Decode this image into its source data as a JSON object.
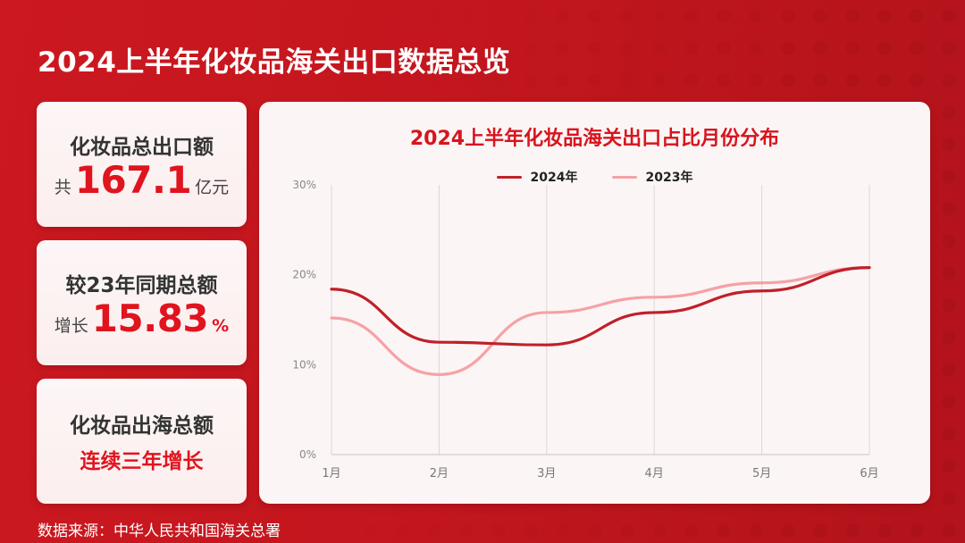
{
  "page": {
    "title": "2024上半年化妆品海关出口数据总览",
    "footer": "数据来源：中华人民共和国海关总署"
  },
  "cards": [
    {
      "label": "化妆品总出口额",
      "prefix": "共",
      "value": "167.1",
      "suffix": "亿元"
    },
    {
      "label": "较23年同期总额",
      "prefix": "增长",
      "value": "15.83",
      "suffix": "%"
    },
    {
      "label": "化妆品出海总额",
      "highlight": "连续三年增长"
    }
  ],
  "colors": {
    "background": "#c3161e",
    "accent": "#e0141e",
    "series_2024": "#c0202a",
    "series_2023": "#f4a2a6",
    "card_bg": "#fdf6f6"
  },
  "chart": {
    "title": "2024上半年化妆品海关出口占比月份分布",
    "legend": [
      {
        "label": "2024年",
        "color": "#c0202a"
      },
      {
        "label": "2023年",
        "color": "#f4a2a6"
      }
    ],
    "y_ticks": [
      "0%",
      "10%",
      "20%",
      "30%"
    ],
    "x_ticks": [
      "1月",
      "2月",
      "3月",
      "4月",
      "5月",
      "6月"
    ]
  },
  "chart_data": {
    "type": "line",
    "title": "2024上半年化妆品海关出口占比月份分布",
    "xlabel": "",
    "ylabel": "",
    "categories": [
      "1月",
      "2月",
      "3月",
      "4月",
      "5月",
      "6月"
    ],
    "series": [
      {
        "name": "2024年",
        "values": [
          18.4,
          12.5,
          12.2,
          15.8,
          18.2,
          20.8
        ]
      },
      {
        "name": "2023年",
        "values": [
          15.2,
          8.9,
          15.8,
          17.5,
          19.1,
          20.8
        ]
      }
    ],
    "ylim": [
      0,
      30
    ],
    "y_ticks": [
      0,
      10,
      20,
      30
    ],
    "y_unit": "%",
    "smooth": true,
    "grid": "vertical",
    "legend_position": "top"
  }
}
